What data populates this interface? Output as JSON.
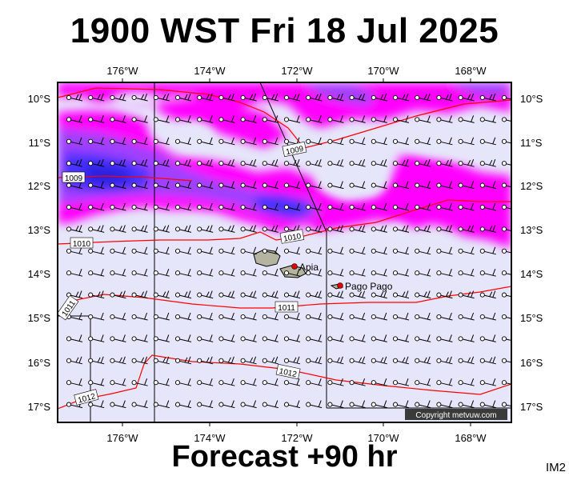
{
  "title": "1900 WST Fri 18 Jul 2025",
  "subtitle": "Forecast +90 hr",
  "image_tag": "IM2",
  "copyright": "Copyright metvuw.com",
  "map": {
    "lon_labels": [
      "176°W",
      "174°W",
      "172°W",
      "170°W",
      "168°W"
    ],
    "lat_labels": [
      "10°S",
      "11°S",
      "12°S",
      "13°S",
      "14°S",
      "15°S",
      "16°S",
      "17°S"
    ],
    "places": [
      {
        "name": "Apia"
      },
      {
        "name": "Pago Pago"
      }
    ],
    "isobar_labels": [
      "1009",
      "1009",
      "1010",
      "1010",
      "1011",
      "1011",
      "1012",
      "1012"
    ],
    "colors": {
      "background": "#e6e6fa",
      "rain_light": "#ff00ff",
      "rain_medium": "#a040ff",
      "rain_heavy": "#4a30ff",
      "rain_extreme": "#1f1fd0",
      "isobar": "#ff0000",
      "land": "#b4b4a0"
    }
  }
}
